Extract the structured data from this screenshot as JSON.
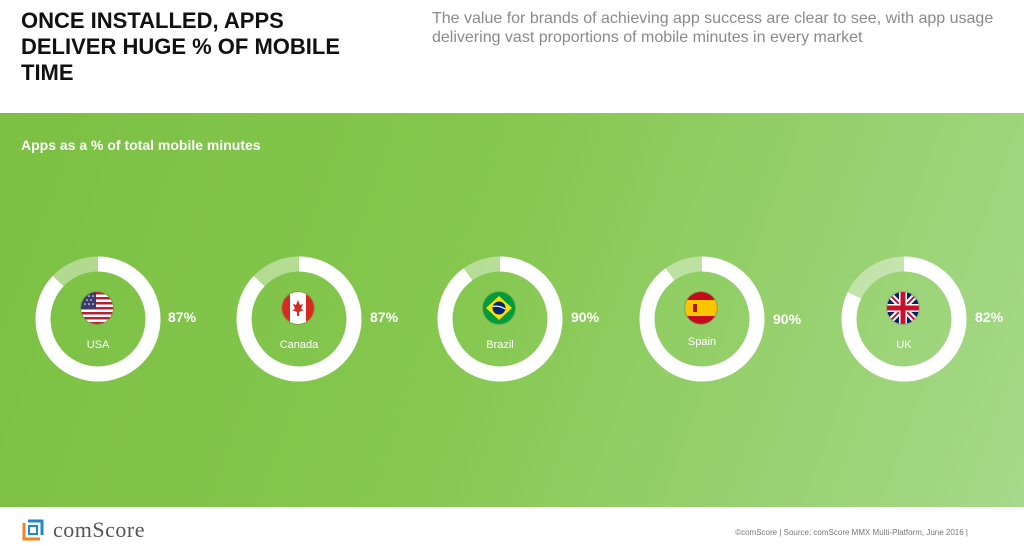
{
  "header": {
    "headline": "ONCE INSTALLED, APPS DELIVER HUGE % OF MOBILE TIME",
    "subhead": "The value for brands of achieving app success are clear to see, with app usage delivering vast proportions of mobile minutes in every market"
  },
  "panel": {
    "title": "Apps as a % of total mobile minutes"
  },
  "chart_data": {
    "type": "pie",
    "title": "Apps as a % of total mobile minutes",
    "categories": [
      "USA",
      "Canada",
      "Brazil",
      "Spain",
      "UK"
    ],
    "values": [
      87,
      87,
      90,
      90,
      82
    ],
    "labels": [
      "87%",
      "87%",
      "90%",
      "90%",
      "82%"
    ],
    "unit": "%"
  },
  "footer": {
    "brand": "comScore",
    "source": "©comScore  |  Source: comScore MMX Multi-Platform, June 2016  |"
  },
  "colors": {
    "panel_start": "#7bc043",
    "panel_end": "#a6d98a",
    "ring": "#ffffff",
    "ring_remainder": "rgba(255,255,255,0.4)",
    "logo_orange": "#f58220",
    "logo_blue": "#1e88c8"
  },
  "icons": [
    "usa-flag-icon",
    "canada-flag-icon",
    "brazil-flag-icon",
    "spain-flag-icon",
    "uk-flag-icon",
    "comscore-logo-icon"
  ]
}
